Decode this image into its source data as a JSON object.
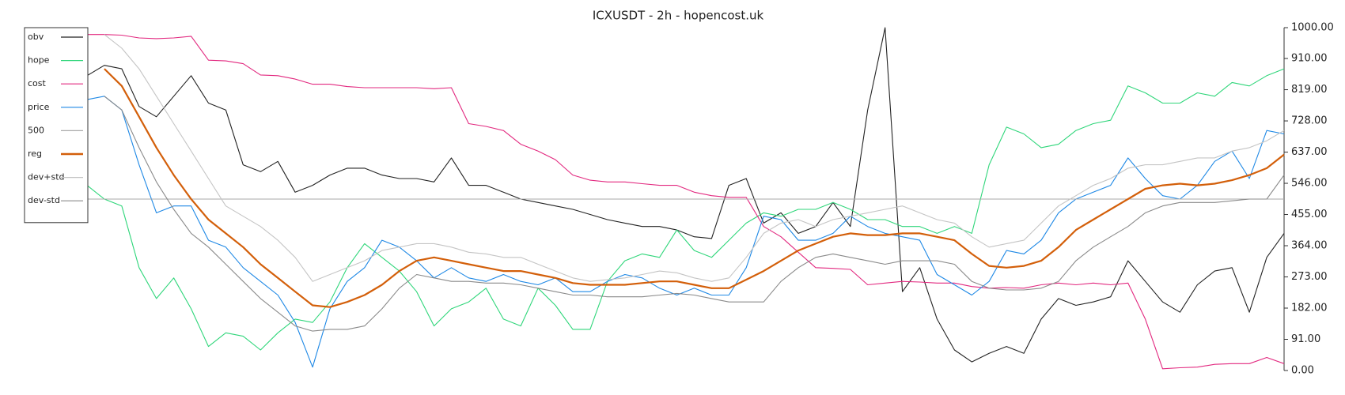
{
  "chart_data": {
    "type": "line",
    "title": "ICXUSDT - 2h - hopencost.uk",
    "ylim": [
      0,
      1000
    ],
    "yticks": [
      {
        "value": 0,
        "label": "0.00"
      },
      {
        "value": 91,
        "label": "91.00"
      },
      {
        "value": 182,
        "label": "182.00"
      },
      {
        "value": 273,
        "label": "273.00"
      },
      {
        "value": 364,
        "label": "364.00"
      },
      {
        "value": 455,
        "label": "455.00"
      },
      {
        "value": 546,
        "label": "546.00"
      },
      {
        "value": 637,
        "label": "637.00"
      },
      {
        "value": 728,
        "label": "728.00"
      },
      {
        "value": 819,
        "label": "819.00"
      },
      {
        "value": 910,
        "label": "910.00"
      },
      {
        "value": 1000,
        "label": "1000.00"
      }
    ],
    "legend": "upper left",
    "series": [
      {
        "name": "obv",
        "color": "#222222",
        "width": 1,
        "values": [
          860,
          890,
          880,
          770,
          740,
          800,
          860,
          780,
          760,
          600,
          580,
          610,
          520,
          540,
          570,
          590,
          590,
          570,
          560,
          560,
          550,
          620,
          540,
          540,
          520,
          500,
          490,
          480,
          470,
          455,
          440,
          430,
          420,
          420,
          410,
          390,
          385,
          540,
          560,
          430,
          460,
          400,
          420,
          490,
          420,
          760,
          1000,
          230,
          300,
          150,
          60,
          25,
          50,
          70,
          50,
          150,
          210,
          190,
          200,
          215,
          320,
          260,
          200,
          170,
          250,
          290,
          300,
          170,
          330,
          400
        ]
      },
      {
        "name": "hope",
        "color": "#2fd67a",
        "width": 1,
        "values": [
          540,
          500,
          480,
          300,
          210,
          270,
          180,
          70,
          110,
          100,
          60,
          110,
          150,
          140,
          200,
          300,
          370,
          330,
          290,
          230,
          130,
          180,
          200,
          240,
          150,
          130,
          240,
          190,
          120,
          120,
          260,
          320,
          340,
          330,
          410,
          350,
          330,
          380,
          430,
          460,
          450,
          470,
          470,
          490,
          470,
          440,
          440,
          420,
          420,
          400,
          420,
          400,
          600,
          710,
          690,
          650,
          660,
          700,
          720,
          730,
          830,
          810,
          780,
          780,
          810,
          800,
          840,
          830,
          860,
          880
        ]
      },
      {
        "name": "cost",
        "color": "#e2287f",
        "width": 1,
        "values": [
          980,
          980,
          978,
          970,
          968,
          970,
          975,
          905,
          903,
          895,
          862,
          860,
          850,
          835,
          835,
          828,
          825,
          825,
          825,
          825,
          822,
          825,
          720,
          712,
          700,
          660,
          640,
          615,
          570,
          555,
          550,
          550,
          545,
          540,
          540,
          520,
          510,
          505,
          505,
          420,
          390,
          345,
          300,
          298,
          295,
          250,
          255,
          260,
          258,
          255,
          255,
          245,
          240,
          242,
          240,
          250,
          255,
          250,
          255,
          250,
          255,
          150,
          5,
          8,
          10,
          18,
          20,
          20,
          38,
          20
        ]
      },
      {
        "name": "price",
        "color": "#1e88e5",
        "width": 1,
        "values": [
          790,
          800,
          760,
          600,
          460,
          480,
          480,
          380,
          360,
          300,
          260,
          220,
          140,
          10,
          180,
          260,
          300,
          380,
          360,
          320,
          270,
          300,
          270,
          260,
          280,
          260,
          250,
          270,
          230,
          230,
          260,
          280,
          270,
          240,
          220,
          240,
          220,
          220,
          300,
          450,
          440,
          380,
          380,
          400,
          450,
          420,
          400,
          390,
          380,
          280,
          250,
          220,
          260,
          350,
          340,
          380,
          460,
          500,
          520,
          540,
          620,
          560,
          510,
          500,
          540,
          610,
          640,
          560,
          700,
          690
        ]
      },
      {
        "name": "500",
        "color": "#aaaaaa",
        "width": 1,
        "values": [
          500,
          500,
          500,
          500,
          500,
          500,
          500,
          500,
          500,
          500,
          500,
          500,
          500,
          500,
          500,
          500,
          500,
          500,
          500,
          500,
          500,
          500,
          500,
          500,
          500,
          500,
          500,
          500,
          500,
          500,
          500,
          500,
          500,
          500,
          500,
          500,
          500,
          500,
          500,
          500,
          500,
          500,
          500,
          500,
          500,
          500,
          500,
          500,
          500,
          500,
          500,
          500,
          500,
          500,
          500,
          500,
          500,
          500,
          500,
          500,
          500,
          500,
          500,
          500,
          500,
          500,
          500,
          500,
          500,
          500
        ]
      },
      {
        "name": "reg",
        "color": "#d35f0a",
        "width": 2,
        "values": [
          null,
          880,
          830,
          740,
          650,
          570,
          500,
          440,
          400,
          360,
          310,
          270,
          230,
          190,
          185,
          200,
          220,
          250,
          290,
          320,
          330,
          320,
          310,
          300,
          290,
          290,
          280,
          270,
          255,
          250,
          250,
          250,
          255,
          260,
          260,
          250,
          240,
          240,
          265,
          290,
          320,
          350,
          370,
          390,
          400,
          395,
          395,
          400,
          400,
          390,
          380,
          340,
          305,
          300,
          305,
          320,
          360,
          410,
          440,
          470,
          500,
          530,
          540,
          545,
          540,
          545,
          555,
          570,
          590,
          630
        ]
      },
      {
        "name": "dev+std",
        "color": "#c4c4c4",
        "width": 1,
        "values": [
          null,
          980,
          940,
          880,
          800,
          720,
          640,
          560,
          480,
          450,
          420,
          380,
          330,
          260,
          280,
          300,
          320,
          350,
          360,
          370,
          370,
          360,
          345,
          340,
          330,
          330,
          310,
          290,
          270,
          260,
          265,
          270,
          280,
          290,
          285,
          270,
          260,
          270,
          330,
          400,
          430,
          440,
          420,
          440,
          450,
          460,
          470,
          480,
          460,
          440,
          430,
          390,
          360,
          370,
          380,
          430,
          480,
          510,
          540,
          560,
          590,
          600,
          600,
          610,
          620,
          620,
          640,
          650,
          670,
          700
        ]
      },
      {
        "name": "dev-std",
        "color": "#8a8a8a",
        "width": 1,
        "values": [
          null,
          800,
          760,
          650,
          550,
          470,
          400,
          360,
          310,
          260,
          210,
          170,
          130,
          115,
          120,
          120,
          130,
          180,
          240,
          280,
          270,
          260,
          260,
          255,
          255,
          250,
          240,
          230,
          220,
          220,
          215,
          215,
          215,
          220,
          225,
          220,
          210,
          200,
          200,
          200,
          260,
          300,
          330,
          340,
          330,
          320,
          310,
          320,
          320,
          320,
          310,
          260,
          240,
          235,
          235,
          240,
          260,
          320,
          360,
          390,
          420,
          460,
          480,
          490,
          490,
          490,
          495,
          500,
          500,
          570
        ]
      }
    ]
  }
}
